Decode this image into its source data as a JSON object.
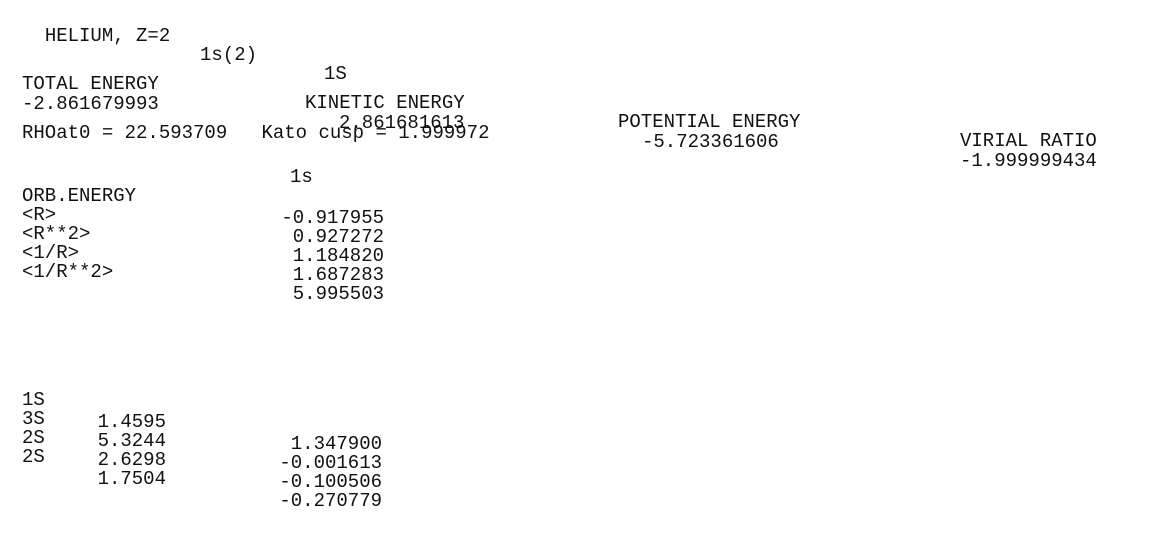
{
  "header": {
    "atom": "HELIUM, Z=2",
    "configuration": "1s(2)",
    "term": "1S"
  },
  "energies": {
    "total_label": "TOTAL ENERGY",
    "kinetic_label": "KINETIC ENERGY",
    "potential_label": "POTENTIAL ENERGY",
    "virial_label": "VIRIAL RATIO",
    "total_value": "-2.861679993",
    "kinetic_value": "2.861681613",
    "potential_value": "-5.723361606",
    "virial_value": "-1.999999434"
  },
  "density_line": "RHOat0 = 22.593709   Kato cusp = 1.999972",
  "orbital_table": {
    "column_header": "1s",
    "rows": [
      {
        "label": "ORB.ENERGY",
        "value": "-0.917955"
      },
      {
        "label": "<R>",
        "value": "0.927272"
      },
      {
        "label": "<R**2>",
        "value": "1.184820"
      },
      {
        "label": "<1/R>",
        "value": "1.687283"
      },
      {
        "label": "<1/R**2>",
        "value": "5.995503"
      }
    ]
  },
  "basis_table": {
    "rows": [
      {
        "function": "1S",
        "exponent": "1.4595",
        "coefficient": "1.347900"
      },
      {
        "function": "3S",
        "exponent": "5.3244",
        "coefficient": "-0.001613"
      },
      {
        "function": "2S",
        "exponent": "2.6298",
        "coefficient": "-0.100506"
      },
      {
        "function": "2S",
        "exponent": "1.7504",
        "coefficient": "-0.270779"
      }
    ]
  }
}
